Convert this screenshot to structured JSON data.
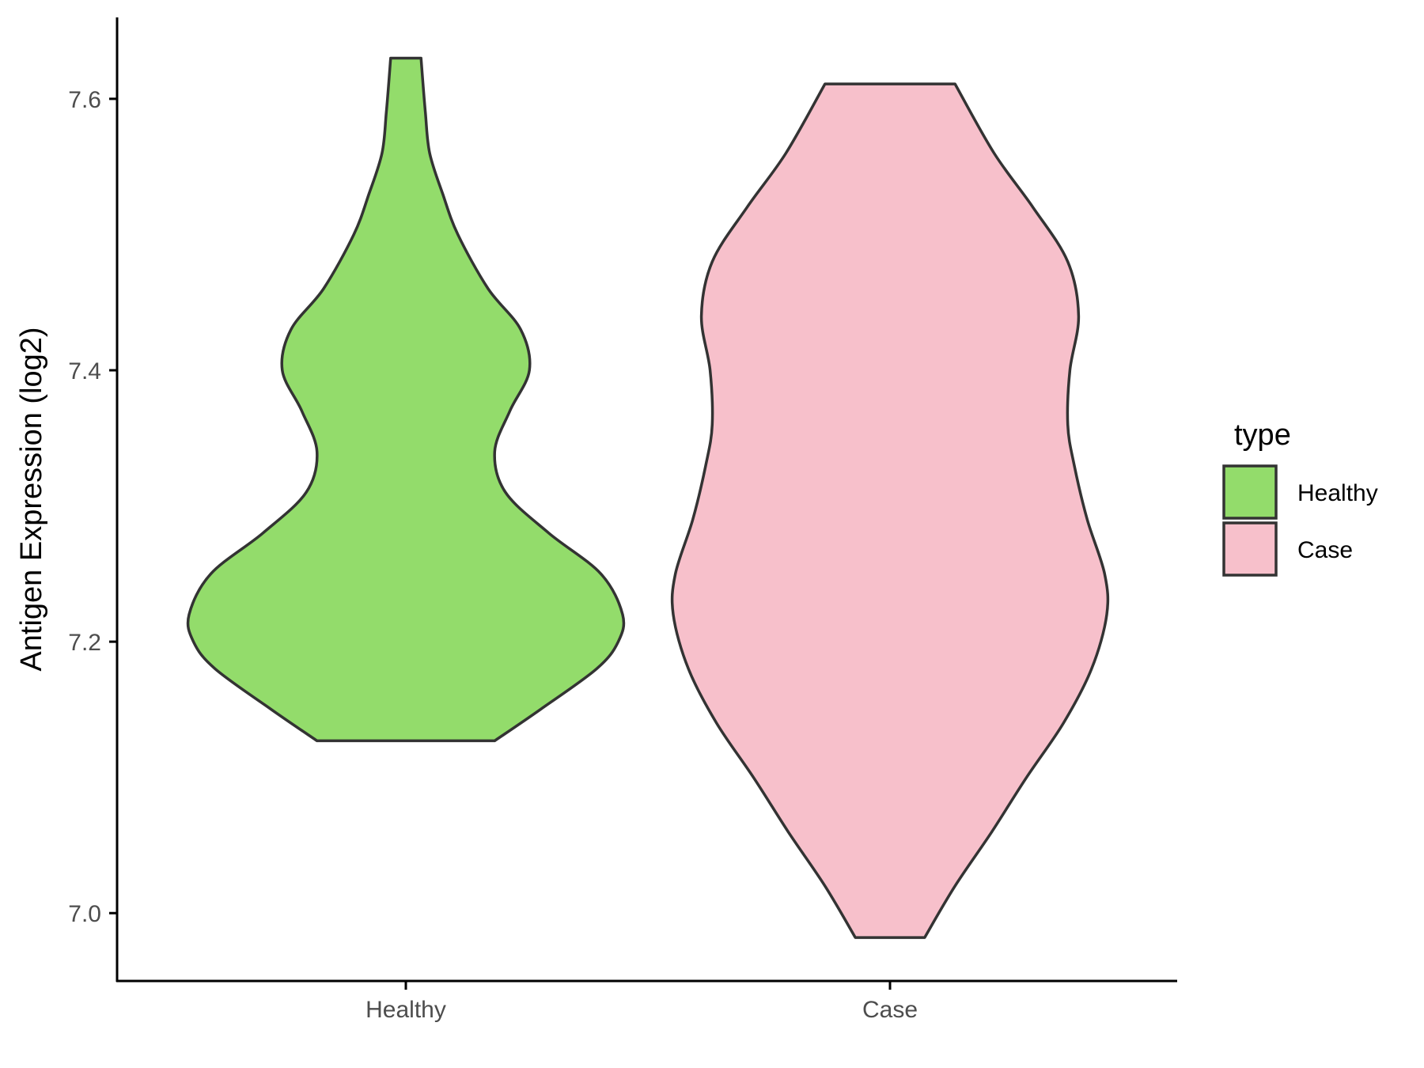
{
  "chart_data": {
    "type": "violin",
    "title": "",
    "xlabel": "",
    "ylabel": "Antigen Expression (log2)",
    "categories": [
      "Healthy",
      "Case"
    ],
    "ylim": [
      6.95,
      7.66
    ],
    "yticks": [
      7.0,
      7.2,
      7.4,
      7.6
    ],
    "ytick_labels": [
      "7.0",
      "7.2",
      "7.4",
      "7.6"
    ],
    "grid": false,
    "legend": {
      "title": "type",
      "position": "right",
      "entries": [
        {
          "label": "Healthy",
          "color": "#93dc6b"
        },
        {
          "label": "Case",
          "color": "#f7c0cb"
        }
      ]
    },
    "series": [
      {
        "name": "Healthy",
        "color": "#93dc6b",
        "min": 7.127,
        "max": 7.63,
        "density_profile": [
          [
            7.127,
            0.41
          ],
          [
            7.15,
            0.62
          ],
          [
            7.18,
            0.88
          ],
          [
            7.2,
            0.98
          ],
          [
            7.22,
            1.0
          ],
          [
            7.25,
            0.9
          ],
          [
            7.28,
            0.66
          ],
          [
            7.31,
            0.46
          ],
          [
            7.34,
            0.41
          ],
          [
            7.37,
            0.48
          ],
          [
            7.4,
            0.57
          ],
          [
            7.43,
            0.53
          ],
          [
            7.46,
            0.38
          ],
          [
            7.5,
            0.24
          ],
          [
            7.53,
            0.17
          ],
          [
            7.56,
            0.11
          ],
          [
            7.59,
            0.09
          ],
          [
            7.63,
            0.07
          ]
        ]
      },
      {
        "name": "Case",
        "color": "#f7c0cb",
        "min": 6.982,
        "max": 7.611,
        "density_profile": [
          [
            6.982,
            0.16
          ],
          [
            7.02,
            0.3
          ],
          [
            7.06,
            0.47
          ],
          [
            7.1,
            0.63
          ],
          [
            7.14,
            0.8
          ],
          [
            7.18,
            0.93
          ],
          [
            7.22,
            1.0
          ],
          [
            7.25,
            0.99
          ],
          [
            7.29,
            0.91
          ],
          [
            7.33,
            0.85
          ],
          [
            7.36,
            0.82
          ],
          [
            7.4,
            0.83
          ],
          [
            7.44,
            0.87
          ],
          [
            7.48,
            0.82
          ],
          [
            7.52,
            0.66
          ],
          [
            7.56,
            0.48
          ],
          [
            7.611,
            0.3
          ]
        ]
      }
    ],
    "outline_color": "#333333"
  }
}
